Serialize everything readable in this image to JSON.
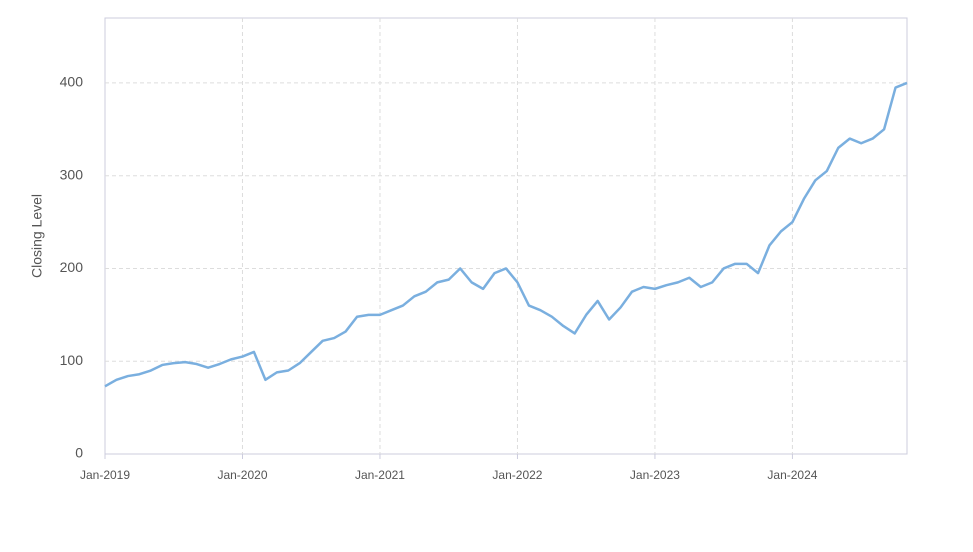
{
  "chart_data": {
    "type": "line",
    "ylabel": "Closing Level",
    "x": [
      "2019-01",
      "2019-02",
      "2019-03",
      "2019-04",
      "2019-05",
      "2019-06",
      "2019-07",
      "2019-08",
      "2019-09",
      "2019-10",
      "2019-11",
      "2019-12",
      "2020-01",
      "2020-02",
      "2020-03",
      "2020-04",
      "2020-05",
      "2020-06",
      "2020-07",
      "2020-08",
      "2020-09",
      "2020-10",
      "2020-11",
      "2020-12",
      "2021-01",
      "2021-02",
      "2021-03",
      "2021-04",
      "2021-05",
      "2021-06",
      "2021-07",
      "2021-08",
      "2021-09",
      "2021-10",
      "2021-11",
      "2021-12",
      "2022-01",
      "2022-02",
      "2022-03",
      "2022-04",
      "2022-05",
      "2022-06",
      "2022-07",
      "2022-08",
      "2022-09",
      "2022-10",
      "2022-11",
      "2022-12",
      "2023-01",
      "2023-02",
      "2023-03",
      "2023-04",
      "2023-05",
      "2023-06",
      "2023-07",
      "2023-08",
      "2023-09",
      "2023-10",
      "2023-11",
      "2023-12",
      "2024-01",
      "2024-02",
      "2024-03",
      "2024-04",
      "2024-05",
      "2024-06",
      "2024-07",
      "2024-08",
      "2024-09",
      "2024-10",
      "2024-11"
    ],
    "series": [
      {
        "name": "Closing Level",
        "color": "#7aafdf",
        "values": [
          73,
          80,
          84,
          86,
          90,
          96,
          98,
          99,
          97,
          93,
          97,
          102,
          105,
          110,
          80,
          88,
          90,
          98,
          110,
          122,
          125,
          132,
          148,
          150,
          150,
          155,
          160,
          170,
          175,
          185,
          188,
          200,
          185,
          178,
          195,
          200,
          185,
          160,
          155,
          148,
          138,
          130,
          150,
          165,
          145,
          158,
          175,
          180,
          178,
          182,
          185,
          190,
          180,
          185,
          200,
          205,
          205,
          195,
          225,
          240,
          250,
          275,
          295,
          305,
          330,
          340,
          335,
          340,
          350,
          395,
          400
        ]
      }
    ],
    "xlim": [
      "2019-01",
      "2024-11"
    ],
    "xticks": [
      {
        "value": "2019-01",
        "label": "Jan-2019"
      },
      {
        "value": "2020-01",
        "label": "Jan-2020"
      },
      {
        "value": "2021-01",
        "label": "Jan-2021"
      },
      {
        "value": "2022-01",
        "label": "Jan-2022"
      },
      {
        "value": "2023-01",
        "label": "Jan-2023"
      },
      {
        "value": "2024-01",
        "label": "Jan-2024"
      }
    ],
    "ylim": [
      0,
      470
    ],
    "yticks": [
      0,
      100,
      200,
      300,
      400
    ],
    "grid": true
  }
}
